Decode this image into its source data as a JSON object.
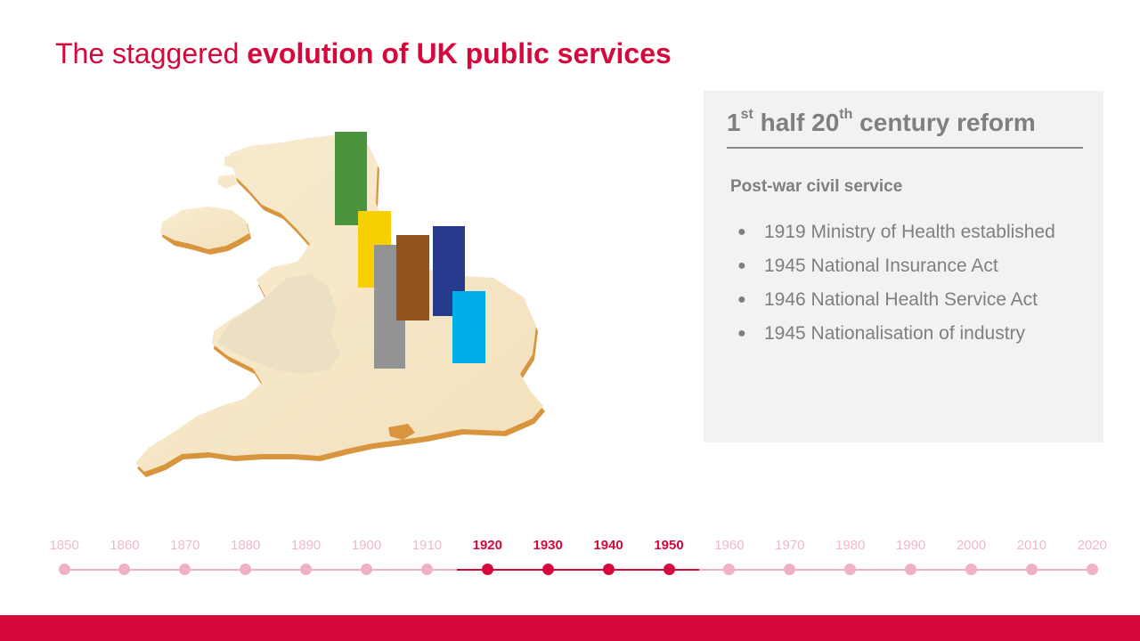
{
  "title": {
    "regular": "The staggered ",
    "bold": "evolution of UK public services"
  },
  "panel": {
    "heading_1": "1",
    "heading_sup1": "st",
    "heading_2": " half 20",
    "heading_sup2": "th",
    "heading_3": " century reform",
    "subheading": "Post-war civil service",
    "bullets": [
      "1919 Ministry of Health established",
      "1945 National Insurance Act",
      "1946 National Health Service Act",
      "1945 Nationalisation of industry"
    ]
  },
  "timeline": {
    "years": [
      "1850",
      "1860",
      "1870",
      "1880",
      "1890",
      "1900",
      "1910",
      "1920",
      "1930",
      "1940",
      "1950",
      "1960",
      "1970",
      "1980",
      "1990",
      "2000",
      "2010",
      "2020"
    ],
    "active_range": [
      "1920",
      "1950"
    ]
  },
  "bars": [
    {
      "name": "green",
      "color": "#4a943e"
    },
    {
      "name": "yellow",
      "color": "#f6d000"
    },
    {
      "name": "grey",
      "color": "#939393"
    },
    {
      "name": "brown",
      "color": "#93531d"
    },
    {
      "name": "navy",
      "color": "#273a8c"
    },
    {
      "name": "light-blue",
      "color": "#00aee8"
    }
  ],
  "colors": {
    "accent": "#d6083b",
    "muted": "#f0b0c5",
    "panel_bg": "#f2f2f2",
    "panel_text": "#7f7f7f"
  }
}
